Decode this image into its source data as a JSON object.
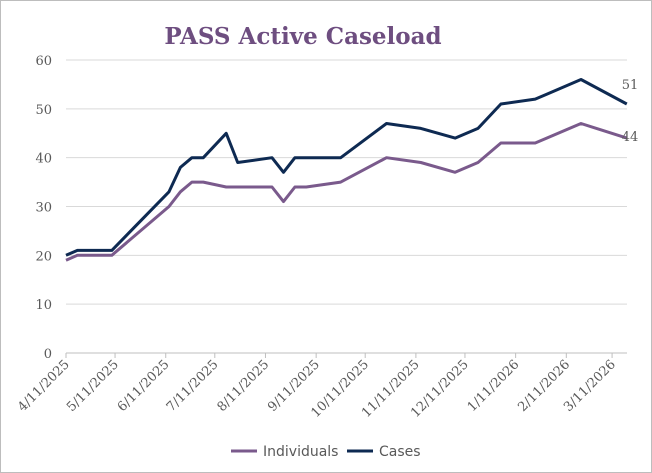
{
  "chart_data": {
    "type": "line",
    "title": "PASS Active Caseload",
    "xlabel": "",
    "ylabel": "",
    "ylim": [
      0,
      60
    ],
    "yticks": [
      0,
      10,
      20,
      30,
      40,
      50,
      60
    ],
    "xticks": [
      "4/11/2025",
      "5/11/2025",
      "6/11/2025",
      "7/11/2025",
      "8/11/2025",
      "9/11/2025",
      "10/11/2025",
      "11/11/2025",
      "12/11/2025",
      "1/11/2026",
      "2/11/2026",
      "3/11/2026"
    ],
    "grid": "horizontal",
    "legend": "bottom",
    "x": [
      "2025-04-11",
      "2025-04-18",
      "2025-05-09",
      "2025-06-13",
      "2025-06-20",
      "2025-06-27",
      "2025-07-04",
      "2025-07-18",
      "2025-07-25",
      "2025-08-15",
      "2025-08-22",
      "2025-08-29",
      "2025-09-05",
      "2025-09-26",
      "2025-10-24",
      "2025-11-14",
      "2025-12-05",
      "2025-12-19",
      "2026-01-02",
      "2026-01-23",
      "2026-01-30",
      "2026-02-20",
      "2026-03-20"
    ],
    "series": [
      {
        "name": "Individuals",
        "color": "#7A5A8C",
        "values": [
          19,
          20,
          20,
          30,
          33,
          35,
          35,
          34,
          34,
          34,
          31,
          34,
          34,
          35,
          40,
          39,
          37,
          39,
          43,
          43,
          44,
          47,
          44
        ],
        "end_label": "44"
      },
      {
        "name": "Cases",
        "color": "#0E2A52",
        "values": [
          20,
          21,
          21,
          33,
          38,
          40,
          40,
          45,
          39,
          40,
          37,
          40,
          40,
          40,
          47,
          46,
          44,
          46,
          51,
          52,
          53,
          56,
          51
        ],
        "end_label": "51"
      }
    ]
  }
}
